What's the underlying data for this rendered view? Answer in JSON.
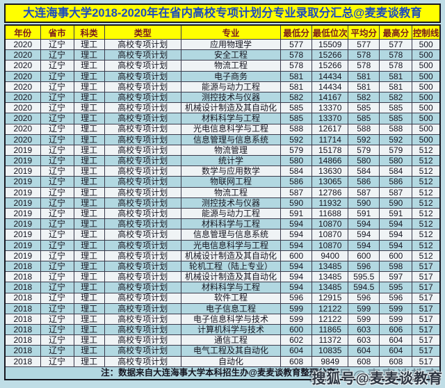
{
  "title": "大连海事大学2018-2020年在省内高校专项计划分专业录取分汇总@麦麦谈教育",
  "watermark": "搜狐号@麦麦谈教育",
  "colors": {
    "page_background": "#bfdde6",
    "title_background": "#ffff00",
    "title_text": "#1c4bbe",
    "header_background": "#ffff00",
    "header_text": "#7a1c1c",
    "row_light": "#eff3f5",
    "row_blue": "#b2d8e1",
    "border": "#39394a"
  },
  "chart_data": {
    "type": "table",
    "title": "大连海事大学2018-2020年在省内高校专项计划分专业录取分汇总@麦麦谈教育",
    "note": "注：数据来自大连海事大学本科招生办@麦麦谈教育整理分享！",
    "column_keys": [
      "year",
      "province",
      "subject",
      "type",
      "major",
      "min-score",
      "min-rank",
      "avg-score",
      "max-score",
      "control-line"
    ],
    "columns": [
      "年份",
      "省市",
      "科类",
      "类型",
      "专业",
      "最低分",
      "最低位次",
      "平均分",
      "最高分",
      "控制线"
    ],
    "rows": [
      [
        "2020",
        "辽宁",
        "理工",
        "高校专项计划",
        "应用物理学",
        "577",
        "15509",
        "577",
        "577",
        "500"
      ],
      [
        "2020",
        "辽宁",
        "理工",
        "高校专项计划",
        "安全工程",
        "578",
        "15266",
        "578",
        "578",
        "500"
      ],
      [
        "2020",
        "辽宁",
        "理工",
        "高校专项计划",
        "物流工程",
        "578",
        "15266",
        "578",
        "578",
        "500"
      ],
      [
        "2020",
        "辽宁",
        "理工",
        "高校专项计划",
        "电子商务",
        "581",
        "14434",
        "581",
        "581",
        "500"
      ],
      [
        "2020",
        "辽宁",
        "理工",
        "高校专项计划",
        "能源与动力工程",
        "581",
        "14434",
        "581",
        "581",
        "500"
      ],
      [
        "2020",
        "辽宁",
        "理工",
        "高校专项计划",
        "测控技术与仪器",
        "582",
        "14167",
        "582",
        "582",
        "500"
      ],
      [
        "2020",
        "辽宁",
        "理工",
        "高校专项计划",
        "机械设计制造及其自动化",
        "585",
        "13370",
        "585",
        "585",
        "500"
      ],
      [
        "2020",
        "辽宁",
        "理工",
        "高校专项计划",
        "材料科学与工程",
        "585",
        "13370",
        "585",
        "585",
        "500"
      ],
      [
        "2020",
        "辽宁",
        "理工",
        "高校专项计划",
        "光电信息科学与工程",
        "588",
        "12617",
        "588",
        "588",
        "500"
      ],
      [
        "2020",
        "辽宁",
        "理工",
        "高校专项计划",
        "信息管理与信息系统",
        "592",
        "11714",
        "592",
        "592",
        "500"
      ],
      [
        "2019",
        "辽宁",
        "理工",
        "高校专项计划",
        "物流管理",
        "579",
        "15178",
        "579",
        "579",
        "512"
      ],
      [
        "2019",
        "辽宁",
        "理工",
        "高校专项计划",
        "统计学",
        "580",
        "14866",
        "580",
        "580",
        "512"
      ],
      [
        "2019",
        "辽宁",
        "理工",
        "高校专项计划",
        "数学与应用数学",
        "584",
        "13630",
        "584",
        "584",
        "512"
      ],
      [
        "2019",
        "辽宁",
        "理工",
        "高校专项计划",
        "物联网工程",
        "586",
        "13065",
        "586",
        "586",
        "512"
      ],
      [
        "2019",
        "辽宁",
        "理工",
        "高校专项计划",
        "物流工程",
        "587",
        "12786",
        "587",
        "587",
        "512"
      ],
      [
        "2019",
        "辽宁",
        "理工",
        "高校专项计划",
        "测控技术与仪器",
        "590",
        "11932",
        "590",
        "590",
        "512"
      ],
      [
        "2019",
        "辽宁",
        "理工",
        "高校专项计划",
        "能源与动力工程",
        "591",
        "11688",
        "591",
        "591",
        "512"
      ],
      [
        "2019",
        "辽宁",
        "理工",
        "高校专项计划",
        "材料科学与工程",
        "594",
        "10870",
        "594",
        "594",
        "512"
      ],
      [
        "2019",
        "辽宁",
        "理工",
        "高校专项计划",
        "信息管理与信息系统",
        "594",
        "10870",
        "594",
        "594",
        "512"
      ],
      [
        "2019",
        "辽宁",
        "理工",
        "高校专项计划",
        "光电信息科学与工程",
        "594",
        "10870",
        "594",
        "594",
        "512"
      ],
      [
        "2019",
        "辽宁",
        "理工",
        "高校专项计划",
        "机械设计制造及其自动化",
        "600",
        "9400",
        "600",
        "600",
        "512"
      ],
      [
        "2018",
        "辽宁",
        "理工",
        "高校专项计划",
        "轮机工程（陆上专业）",
        "594",
        "13485",
        "596",
        "598",
        "517"
      ],
      [
        "2018",
        "辽宁",
        "理工",
        "高校专项计划",
        "机械设计制造及其自动化",
        "594",
        "13485",
        "595.5",
        "597",
        "517"
      ],
      [
        "2018",
        "辽宁",
        "理工",
        "高校专项计划",
        "材料科学与工程",
        "594",
        "13485",
        "594.5",
        "595",
        "517"
      ],
      [
        "2018",
        "辽宁",
        "理工",
        "高校专项计划",
        "软件工程",
        "596",
        "12915",
        "596",
        "596",
        "517"
      ],
      [
        "2018",
        "辽宁",
        "理工",
        "高校专项计划",
        "电子信息工程",
        "599",
        "12122",
        "599",
        "599",
        "517"
      ],
      [
        "2018",
        "辽宁",
        "理工",
        "高校专项计划",
        "电子信息科学与技术",
        "599",
        "12122",
        "599",
        "599",
        "517"
      ],
      [
        "2018",
        "辽宁",
        "理工",
        "高校专项计划",
        "计算机科学与技术",
        "600",
        "11865",
        "603",
        "606",
        "517"
      ],
      [
        "2018",
        "辽宁",
        "理工",
        "高校专项计划",
        "通信工程",
        "602",
        "11372",
        "603",
        "604",
        "517"
      ],
      [
        "2018",
        "辽宁",
        "理工",
        "高校专项计划",
        "电气工程及其自动化",
        "604",
        "10835",
        "604",
        "604",
        "517"
      ],
      [
        "2018",
        "辽宁",
        "理工",
        "高校专项计划",
        "自动化",
        "608",
        "9849",
        "608",
        "608",
        "517"
      ]
    ]
  }
}
